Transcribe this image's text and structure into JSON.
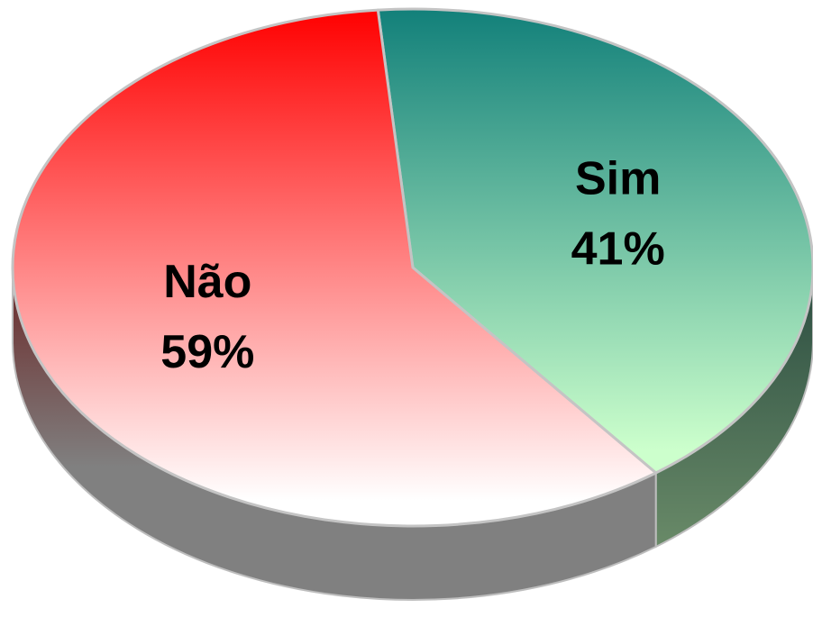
{
  "chart_data": {
    "type": "pie",
    "categories": [
      "Sim",
      "Não"
    ],
    "values": [
      41,
      59
    ],
    "value_labels": [
      "41%",
      "59%"
    ],
    "colors": [
      "#12807a",
      "#ff0000"
    ]
  }
}
